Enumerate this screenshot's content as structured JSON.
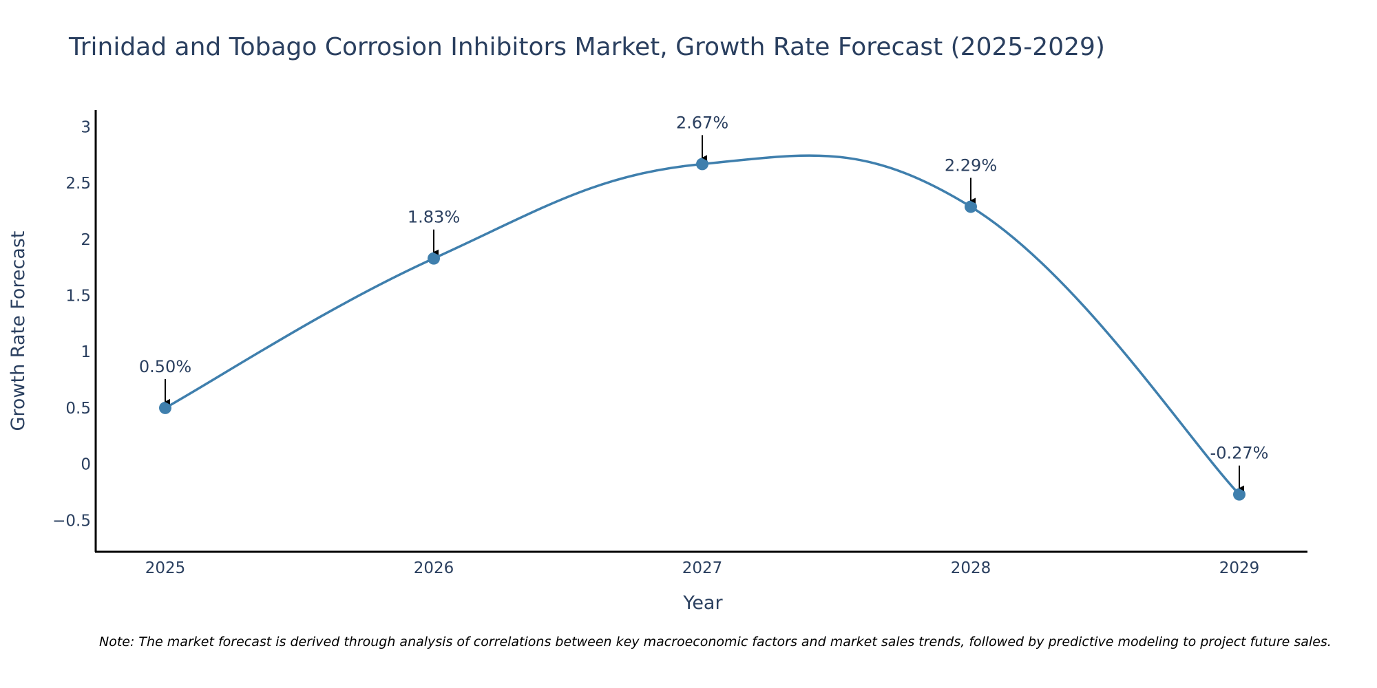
{
  "chart_data": {
    "type": "line",
    "title": "Trinidad and Tobago Corrosion Inhibitors Market, Growth Rate Forecast (2025-2029)",
    "xlabel": "Year",
    "ylabel": "Growth Rate Forecast",
    "categories": [
      "2025",
      "2026",
      "2027",
      "2028",
      "2029"
    ],
    "values": [
      0.5,
      1.83,
      2.67,
      2.29,
      -0.27
    ],
    "data_labels": [
      "0.50%",
      "1.83%",
      "2.67%",
      "2.29%",
      "-0.27%"
    ],
    "ylim": [
      -0.78,
      3.15
    ],
    "yticks": [
      {
        "value": -0.5,
        "label": "−0.5"
      },
      {
        "value": 0,
        "label": "0"
      },
      {
        "value": 0.5,
        "label": "0.5"
      },
      {
        "value": 1,
        "label": "1"
      },
      {
        "value": 1.5,
        "label": "1.5"
      },
      {
        "value": 2,
        "label": "2"
      },
      {
        "value": 2.5,
        "label": "2.5"
      },
      {
        "value": 3,
        "label": "3"
      }
    ],
    "grid": false,
    "line_shape": "spline",
    "line_color": "#3f7fad",
    "marker_color": "#3f7fad",
    "arrow_color": "#000000",
    "note": "Note: The market forecast is derived through analysis of correlations between key macroeconomic factors and market sales trends, followed by predictive modeling to project future sales."
  }
}
